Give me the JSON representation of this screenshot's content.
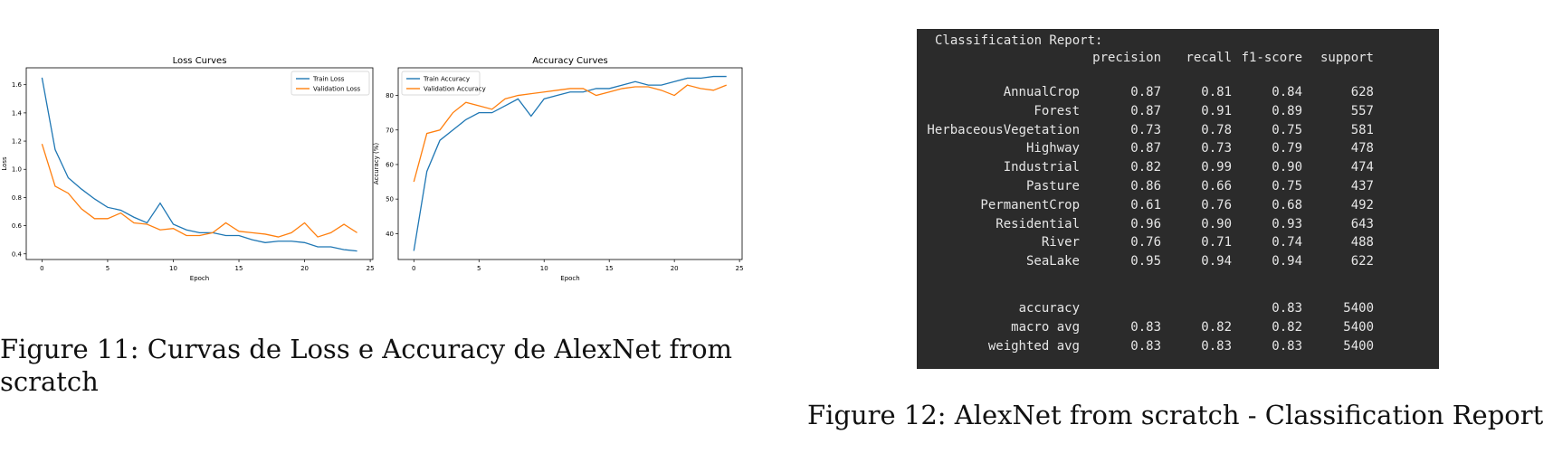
{
  "figure11": {
    "caption": "Figure 11: Curvas de Loss e Accuracy de AlexNet from scratch"
  },
  "figure12": {
    "caption": "Figure 12: AlexNet from scratch - Classification Report"
  },
  "chart_data": [
    {
      "type": "line",
      "title": "Loss Curves",
      "xlabel": "Epoch",
      "ylabel": "Loss",
      "xlim": [
        -1.2,
        25.2
      ],
      "ylim": [
        0.36,
        1.72
      ],
      "xticks": [
        0,
        5,
        10,
        15,
        20,
        25
      ],
      "yticks": [
        0.4,
        0.6,
        0.8,
        1.0,
        1.2,
        1.4,
        1.6
      ],
      "ytick_decimals": 1,
      "grid": false,
      "legend_position": "top-right",
      "x": [
        0,
        1,
        2,
        3,
        4,
        5,
        6,
        7,
        8,
        9,
        10,
        11,
        12,
        13,
        14,
        15,
        16,
        17,
        18,
        19,
        20,
        21,
        22,
        23,
        24
      ],
      "series": [
        {
          "name": "Train Loss",
          "color": "#1f77b4",
          "values": [
            1.65,
            1.14,
            0.94,
            0.86,
            0.79,
            0.73,
            0.71,
            0.66,
            0.62,
            0.76,
            0.61,
            0.57,
            0.55,
            0.55,
            0.53,
            0.53,
            0.5,
            0.48,
            0.49,
            0.49,
            0.48,
            0.45,
            0.45,
            0.43,
            0.42
          ]
        },
        {
          "name": "Validation Loss",
          "color": "#ff7f0e",
          "values": [
            1.18,
            0.88,
            0.83,
            0.72,
            0.65,
            0.65,
            0.69,
            0.62,
            0.61,
            0.57,
            0.58,
            0.53,
            0.53,
            0.55,
            0.62,
            0.56,
            0.55,
            0.54,
            0.52,
            0.55,
            0.62,
            0.52,
            0.55,
            0.61,
            0.55
          ]
        }
      ]
    },
    {
      "type": "line",
      "title": "Accuracy Curves",
      "xlabel": "Epoch",
      "ylabel": "Accuracy (%)",
      "xlim": [
        -1.2,
        25.2
      ],
      "ylim": [
        32.5,
        88
      ],
      "xticks": [
        0,
        5,
        10,
        15,
        20,
        25
      ],
      "yticks": [
        40,
        50,
        60,
        70,
        80
      ],
      "ytick_decimals": 0,
      "grid": false,
      "legend_position": "top-left",
      "x": [
        0,
        1,
        2,
        3,
        4,
        5,
        6,
        7,
        8,
        9,
        10,
        11,
        12,
        13,
        14,
        15,
        16,
        17,
        18,
        19,
        20,
        21,
        22,
        23,
        24
      ],
      "series": [
        {
          "name": "Train Accuracy",
          "color": "#1f77b4",
          "values": [
            35,
            58,
            67,
            70,
            73,
            75,
            75,
            77,
            79,
            74,
            79,
            80,
            81,
            81,
            82,
            82,
            83,
            84,
            83,
            83,
            84,
            85,
            85,
            85.5,
            85.5
          ]
        },
        {
          "name": "Validation Accuracy",
          "color": "#ff7f0e",
          "values": [
            55,
            69,
            70,
            75,
            78,
            77,
            76,
            79,
            80,
            80.5,
            81,
            81.5,
            82,
            82,
            80,
            81,
            82,
            82.5,
            82.5,
            81.5,
            80,
            83,
            82,
            81.5,
            83
          ]
        }
      ]
    },
    {
      "type": "table",
      "title": "Classification Report:",
      "columns": [
        "precision",
        "recall",
        "f1-score",
        "support"
      ],
      "rows": [
        [
          "AnnualCrop",
          "0.87",
          "0.81",
          "0.84",
          "628"
        ],
        [
          "Forest",
          "0.87",
          "0.91",
          "0.89",
          "557"
        ],
        [
          "HerbaceousVegetation",
          "0.73",
          "0.78",
          "0.75",
          "581"
        ],
        [
          "Highway",
          "0.87",
          "0.73",
          "0.79",
          "478"
        ],
        [
          "Industrial",
          "0.82",
          "0.99",
          "0.90",
          "474"
        ],
        [
          "Pasture",
          "0.86",
          "0.66",
          "0.75",
          "437"
        ],
        [
          "PermanentCrop",
          "0.61",
          "0.76",
          "0.68",
          "492"
        ],
        [
          "Residential",
          "0.96",
          "0.90",
          "0.93",
          "643"
        ],
        [
          "River",
          "0.76",
          "0.71",
          "0.74",
          "488"
        ],
        [
          "SeaLake",
          "0.95",
          "0.94",
          "0.94",
          "622"
        ]
      ],
      "summary_rows": [
        [
          "accuracy",
          "",
          "",
          "0.83",
          "5400"
        ],
        [
          "macro avg",
          "0.83",
          "0.82",
          "0.82",
          "5400"
        ],
        [
          "weighted avg",
          "0.83",
          "0.83",
          "0.83",
          "5400"
        ]
      ]
    }
  ]
}
